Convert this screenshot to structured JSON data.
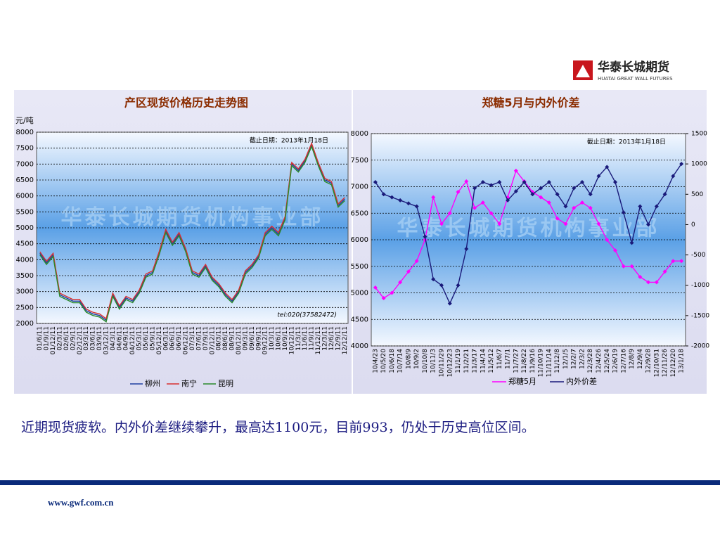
{
  "header": {
    "logo_text": "华泰长城期货",
    "logo_subtext": "HUATAI GREAT WALL FUTURES"
  },
  "chart_data": [
    {
      "type": "line",
      "title": "产区现货价格历史走势图",
      "y_label": "元/吨",
      "annotation": "截止日期：2013年1月18日",
      "note": "tel:020(37582472)",
      "watermark": "华泰长城期货机构事业部",
      "grid": true,
      "legend": "bottom",
      "categories": [
        "01/6/11",
        "01/9/11",
        "01/12/11",
        "02/3/11",
        "02/6/11",
        "02/9/11",
        "02/12/11",
        "03/3/11",
        "03/6/11",
        "03/9/11",
        "03/12/11",
        "04/3/11",
        "04/6/11",
        "04/9/11",
        "04/12/11",
        "05/3/11",
        "05/6/11",
        "05/9/11",
        "05/12/11",
        "06/3/11",
        "06/6/11",
        "06/9/11",
        "06/12/11",
        "07/3/11",
        "07/6/11",
        "07/9/11",
        "07/12/11",
        "08/3/11",
        "08/6/11",
        "08/9/11",
        "08/12/11",
        "09/3/11",
        "09/6/11",
        "09/9/11",
        "09/12/11",
        "10/3/11",
        "10/6/11",
        "10/9/11",
        "10/12/11",
        "11/3/11",
        "11/6/11",
        "11/9/11",
        "11/12/11",
        "12/3/11",
        "12/6/11",
        "12/9/11",
        "12/12/11"
      ],
      "ylim": [
        2000,
        8000
      ],
      "yticks": [
        2000,
        2500,
        3000,
        3500,
        4000,
        4500,
        5000,
        5500,
        6000,
        6500,
        7000,
        7500,
        8000
      ],
      "series": [
        {
          "name": "柳州",
          "color": "#1f3f9f",
          "values": [
            4200,
            3900,
            4150,
            2900,
            2800,
            2700,
            2700,
            2400,
            2300,
            2250,
            2100,
            2900,
            2500,
            2800,
            2700,
            3000,
            3500,
            3600,
            4200,
            4900,
            4500,
            4800,
            4300,
            3600,
            3500,
            3800,
            3400,
            3200,
            2900,
            2700,
            3000,
            3600,
            3800,
            4100,
            4800,
            5000,
            4800,
            5300,
            7000,
            6800,
            7100,
            7600,
            7000,
            6500,
            6400,
            5700,
            5900
          ]
        },
        {
          "name": "南宁",
          "color": "#d83030",
          "values": [
            4250,
            3950,
            4200,
            2950,
            2850,
            2750,
            2750,
            2450,
            2350,
            2300,
            2150,
            2950,
            2550,
            2850,
            2750,
            3050,
            3550,
            3650,
            4250,
            4950,
            4550,
            4850,
            4350,
            3650,
            3550,
            3850,
            3450,
            3250,
            2950,
            2750,
            3050,
            3650,
            3850,
            4150,
            4850,
            5050,
            4850,
            5350,
            7050,
            6850,
            7150,
            7650,
            7050,
            6550,
            6450,
            5750,
            5950
          ]
        },
        {
          "name": "昆明",
          "color": "#2a8a2a",
          "values": [
            4150,
            3850,
            4100,
            2850,
            2750,
            2650,
            2650,
            2350,
            2250,
            2200,
            2050,
            2850,
            2450,
            2750,
            2650,
            2950,
            3450,
            3550,
            4150,
            4850,
            4450,
            4750,
            4250,
            3550,
            3450,
            3750,
            3350,
            3150,
            2850,
            2650,
            2950,
            3550,
            3750,
            4050,
            4750,
            4950,
            4750,
            5250,
            6950,
            6750,
            7050,
            7550,
            6950,
            6450,
            6350,
            5650,
            5850
          ]
        }
      ]
    },
    {
      "type": "line",
      "title": "郑糖5月与内外价差",
      "annotation": "截止日期：2013年1月18日",
      "watermark": "华泰长城期货机构事业部",
      "grid": true,
      "legend": "bottom",
      "markers": true,
      "categories": [
        "10/4/23",
        "10/5/20",
        "10/6/18",
        "10/7/14",
        "10/8/9",
        "10/9/2",
        "10/10/8",
        "10/11/3",
        "10/11/29",
        "10/12/23",
        "11/1/19",
        "11/2/21",
        "11/3/17",
        "11/4/14",
        "11/5/12",
        "11/6/7",
        "11/7/1",
        "11/7/27",
        "11/8/22",
        "11/9/16",
        "11/10/19",
        "11/11/14",
        "11/12/8",
        "12/1/5",
        "12/2/7",
        "12/3/2",
        "12/3/28",
        "12/4/26",
        "12/5/24",
        "12/6/19",
        "12/7/16",
        "12/8/9",
        "12/9/4",
        "12/9/28",
        "12/10/31",
        "12/11/26",
        "12/12/20",
        "13/1/18"
      ],
      "ylim": [
        4000,
        8000
      ],
      "yticks": [
        4000,
        4500,
        5000,
        5500,
        6000,
        6500,
        7000,
        7500,
        8000
      ],
      "y2lim": [
        -2000,
        1500
      ],
      "y2ticks": [
        -2000,
        -1500,
        -1000,
        -500,
        0,
        500,
        1000,
        1500
      ],
      "series": [
        {
          "name": "郑糖5月",
          "color": "#ff00ff",
          "values": [
            5100,
            4900,
            5000,
            5200,
            5400,
            5600,
            6000,
            6800,
            6300,
            6500,
            6900,
            7100,
            6600,
            6700,
            6500,
            6300,
            6800,
            7300,
            7100,
            6900,
            6800,
            6700,
            6400,
            6300,
            6600,
            6700,
            6600,
            6300,
            6000,
            5800,
            5500,
            5500,
            5300,
            5200,
            5200,
            5400,
            5600,
            5600
          ]
        },
        {
          "name": "内外价差",
          "color": "#1a1a7a",
          "axis": "y2",
          "values": [
            700,
            500,
            450,
            400,
            350,
            300,
            -200,
            -900,
            -1000,
            -1300,
            -1000,
            -400,
            600,
            700,
            650,
            700,
            400,
            550,
            700,
            500,
            600,
            700,
            500,
            300,
            600,
            700,
            500,
            800,
            950,
            700,
            200,
            -300,
            300,
            0,
            300,
            500,
            800,
            1000
          ]
        }
      ]
    }
  ],
  "body_text": "近期现货疲软。内外价差继续攀升，最高达1100元，目前993，仍处于历史高位区间。",
  "footer": {
    "url": "www.gwf.com.cn"
  }
}
